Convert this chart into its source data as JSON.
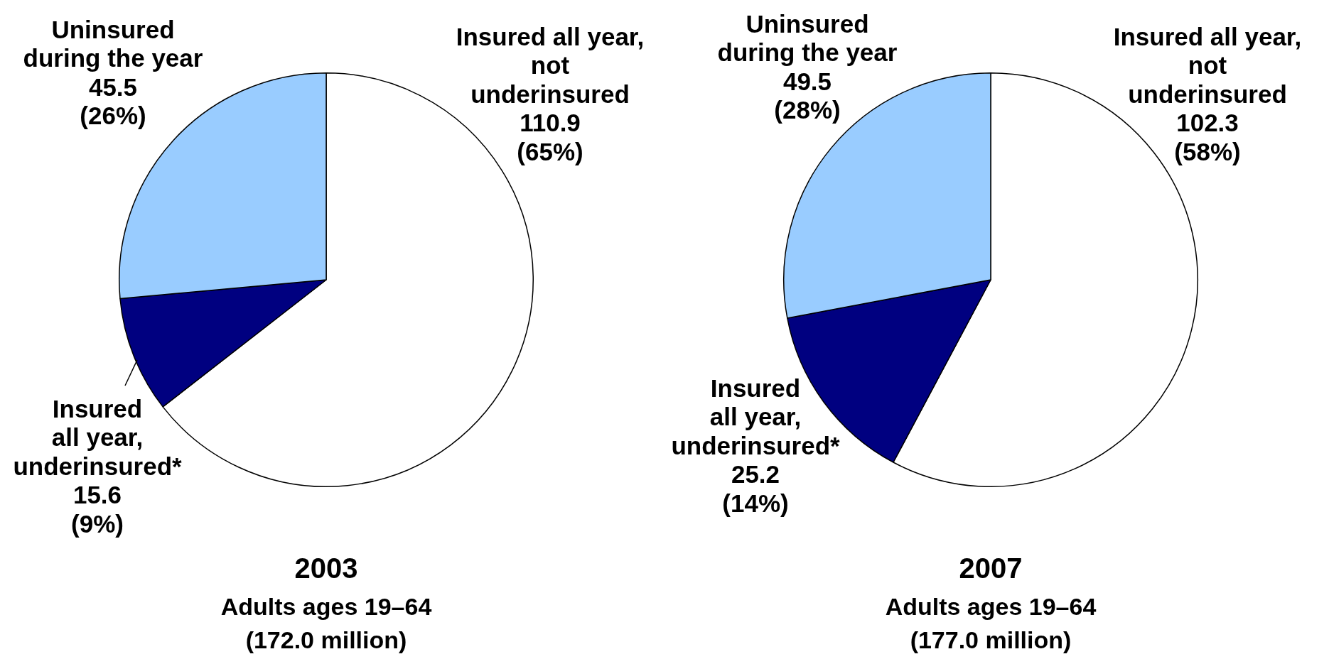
{
  "chart_data": [
    {
      "type": "pie",
      "title": "2003",
      "subtitle": "Adults ages 19–64",
      "annotations": [
        "(172.0 million)"
      ],
      "categories": [
        "Insured all year, not underinsured",
        "Insured all year, underinsured*",
        "Uninsured during the year"
      ],
      "values": [
        110.9,
        15.6,
        45.5
      ],
      "value_labels": [
        "110.9 (65%)",
        "15.6 (9%)",
        "45.5 (26%)"
      ],
      "colors": [
        "#ffffff",
        "#000080",
        "#99ccff"
      ]
    },
    {
      "type": "pie",
      "title": "2007",
      "subtitle": "Adults ages 19–64",
      "annotations": [
        "(177.0 million)"
      ],
      "categories": [
        "Insured all year, not underinsured",
        "Insured all year, underinsured*",
        "Uninsured during the year"
      ],
      "values": [
        102.3,
        25.2,
        49.5
      ],
      "value_labels": [
        "102.3 (58%)",
        "25.2 (14%)",
        "49.5 (28%)"
      ],
      "colors": [
        "#ffffff",
        "#000080",
        "#99ccff"
      ]
    }
  ]
}
